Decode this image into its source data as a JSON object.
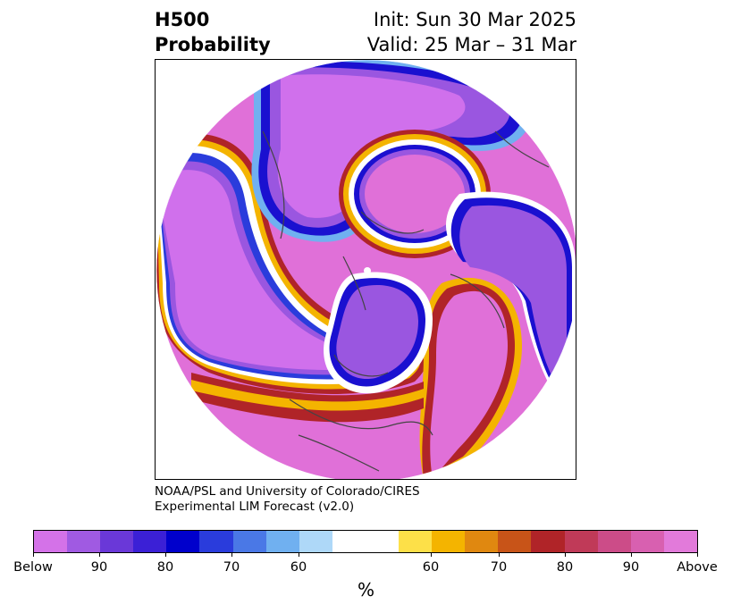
{
  "header": {
    "left_line1": "H500",
    "left_line2": "Probability",
    "right_line1": "Init: Sun 30 Mar 2025",
    "right_line2": "Valid: 25 Mar – 31 Mar"
  },
  "credit": {
    "line1": "NOAA/PSL and University of Colorado/CIRES",
    "line2": "Experimental LIM Forecast (v2.0)"
  },
  "colorbar": {
    "colors": [
      "#d472e8",
      "#a05ae2",
      "#6a38d8",
      "#3b20d6",
      "#0000cc",
      "#2a3cdc",
      "#4a78e6",
      "#70b0f0",
      "#aed8f8",
      "#ffffff",
      "#fde048",
      "#f4b400",
      "#e08810",
      "#c85418",
      "#b02428",
      "#c03a58",
      "#cc4c88",
      "#d860b0",
      "#e27ada"
    ],
    "ticks": [
      "Below",
      "90",
      "80",
      "70",
      "60",
      "60",
      "70",
      "80",
      "90",
      "Above"
    ],
    "label": "%"
  },
  "map": {
    "projection": "north-polar-stereographic",
    "fill_colors": {
      "below_deep": "#d070ec",
      "below_mid": "#9a56e0",
      "below_blue": "#1a10d0",
      "neutral": "#ffffff",
      "above_yellow": "#f4b400",
      "above_red": "#b02428",
      "above_deep": "#e070d8"
    }
  }
}
